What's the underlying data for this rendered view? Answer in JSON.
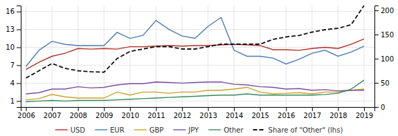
{
  "chart_data": {
    "type": "line",
    "x": [
      2006,
      2006.5,
      2007,
      2007.5,
      2008,
      2008.5,
      2009,
      2009.5,
      2010,
      2010.5,
      2011,
      2011.5,
      2012,
      2012.5,
      2013,
      2013.5,
      2014,
      2014.5,
      2015,
      2015.5,
      2016,
      2016.5,
      2017,
      2017.5,
      2018,
      2018.5,
      2019
    ],
    "xlim": [
      2005.8,
      2019.4
    ],
    "xticks": [
      2006,
      2007,
      2008,
      2009,
      2010,
      2011,
      2012,
      2013,
      2014,
      2015,
      2016,
      2017,
      2018,
      2019
    ],
    "ylim": [
      0,
      17
    ],
    "yticks": [
      1,
      4,
      7,
      10,
      13,
      16
    ],
    "y2lim": [
      0,
      210
    ],
    "y2ticks": [
      0,
      50,
      100,
      150,
      200
    ],
    "grid": true,
    "legend": "bottom",
    "series": [
      {
        "name": "USD",
        "color": "#b33026",
        "values": [
          6.3,
          7.5,
          8.5,
          9.0,
          9.8,
          9.7,
          9.8,
          9.7,
          10.1,
          10.1,
          10.2,
          10.3,
          10.2,
          10.3,
          10.3,
          10.4,
          10.5,
          10.4,
          10.3,
          9.6,
          9.6,
          9.5,
          9.8,
          10.0,
          9.8,
          10.5,
          11.4
        ]
      },
      {
        "name": "EUR",
        "color": "#4a7cb5",
        "values": [
          6.8,
          9.5,
          11.0,
          10.5,
          10.3,
          10.3,
          10.3,
          12.5,
          11.5,
          12.0,
          14.5,
          13.0,
          11.9,
          11.5,
          13.5,
          15.0,
          9.5,
          8.5,
          8.5,
          8.2,
          7.2,
          8.0,
          9.0,
          9.5,
          8.5,
          9.2,
          10.2
        ]
      },
      {
        "name": "GBP",
        "color": "#c9a227",
        "values": [
          1.2,
          1.4,
          2.1,
          1.7,
          1.5,
          1.5,
          1.5,
          2.5,
          2.0,
          2.5,
          2.5,
          2.3,
          2.5,
          2.5,
          2.8,
          2.8,
          3.0,
          3.3,
          2.5,
          2.2,
          2.3,
          2.4,
          2.2,
          2.5,
          2.5,
          2.8,
          3.0
        ]
      },
      {
        "name": "JPY",
        "color": "#7b4f9e",
        "values": [
          2.2,
          2.4,
          3.0,
          3.0,
          3.4,
          3.2,
          3.3,
          3.7,
          3.9,
          3.9,
          4.2,
          4.1,
          4.0,
          4.1,
          4.2,
          4.2,
          3.8,
          3.7,
          3.4,
          3.3,
          3.0,
          3.1,
          2.8,
          2.9,
          2.7,
          2.8,
          2.8
        ]
      },
      {
        "name": "Other",
        "color": "#3a8a5c",
        "values": [
          0.9,
          1.0,
          1.1,
          1.0,
          1.1,
          1.1,
          1.1,
          1.2,
          1.3,
          1.4,
          1.5,
          1.6,
          1.7,
          1.8,
          1.9,
          2.0,
          2.0,
          2.2,
          2.0,
          2.0,
          2.0,
          2.0,
          2.0,
          2.1,
          2.3,
          3.0,
          4.5
        ]
      },
      {
        "name": "Share of \"Other\" (lhs)",
        "color": "#111111",
        "axis": "y2",
        "line_style": "dashed",
        "values": [
          60,
          75,
          90,
          80,
          75,
          73,
          72,
          100,
          115,
          120,
          125,
          125,
          120,
          120,
          125,
          130,
          130,
          130,
          130,
          140,
          145,
          148,
          155,
          160,
          163,
          170,
          210
        ]
      }
    ]
  }
}
